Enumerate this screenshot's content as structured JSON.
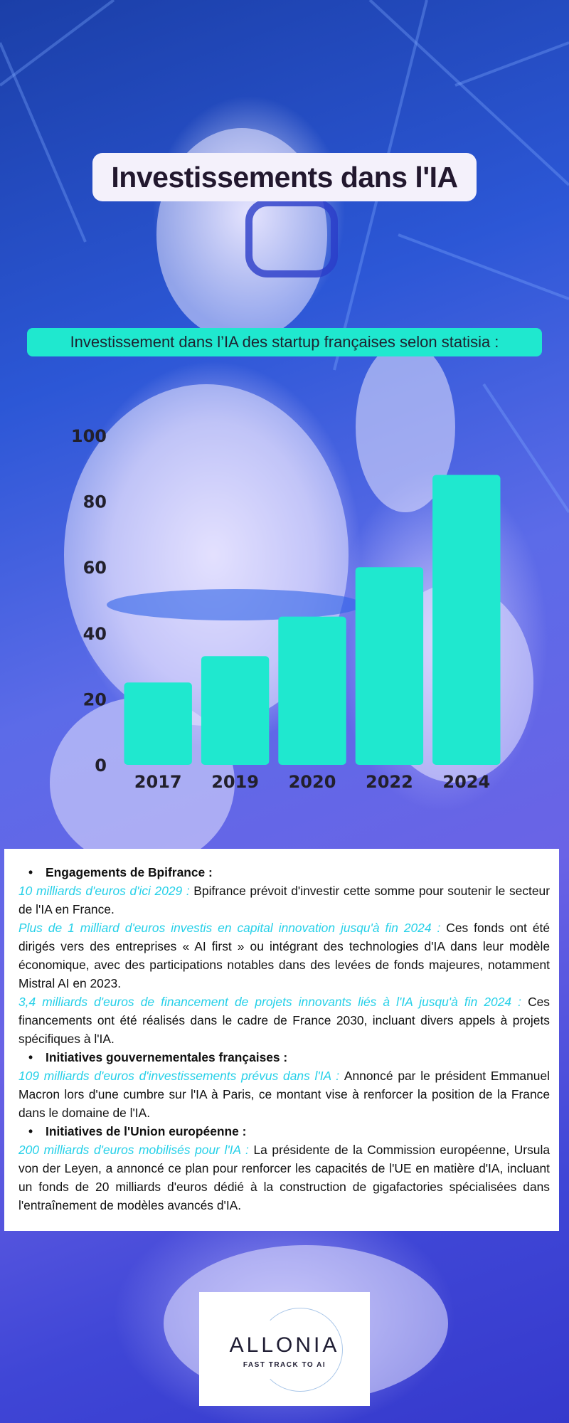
{
  "colors": {
    "accent": "#1fe8cf",
    "highlight": "#25d0e8",
    "title_text": "#22182e"
  },
  "header": {
    "title": "Investissements dans l'IA"
  },
  "chart_data": {
    "type": "bar",
    "title": "Investissement dans l’IA des startup françaises selon statisia :",
    "categories": [
      "2017",
      "2019",
      "2020",
      "2022",
      "2024"
    ],
    "values": [
      25,
      33,
      45,
      60,
      88
    ],
    "ylim": [
      0,
      100
    ],
    "yticks": [
      0,
      20,
      40,
      60,
      80,
      100
    ],
    "bar_color": "#1fe8cf",
    "grid": false
  },
  "sections": {
    "s1": {
      "heading": "Engagements de Bpifrance :",
      "items": [
        {
          "highlight": "10 milliards d'euros d'ici 2029 : ",
          "text": "Bpifrance prévoit d'investir cette somme pour soutenir le secteur de l'IA en France."
        },
        {
          "highlight": "Plus de 1 milliard d'euros investis en capital innovation jusqu'à fin 2024 : ",
          "text": "Ces fonds ont été dirigés vers des entreprises « AI first » ou intégrant des technologies d'IA dans leur modèle économique, avec des participations notables dans des levées de fonds majeures, notamment Mistral AI en 2023."
        },
        {
          "highlight": "3,4 milliards d'euros de financement de projets innovants liés à l'IA jusqu'à fin 2024 : ",
          "text": "Ces financements ont été réalisés dans le cadre de France 2030, incluant divers appels à projets spécifiques à l'IA."
        }
      ]
    },
    "s2": {
      "heading": "Initiatives gouvernementales françaises :",
      "items": [
        {
          "highlight": "109 milliards d'euros d'investissements prévus dans l'IA : ",
          "text": "Annoncé par le président Emmanuel Macron lors d'une cumbre sur l'IA à Paris, ce montant vise à renforcer la position de la France dans le domaine de l'IA."
        }
      ]
    },
    "s3": {
      "heading": "Initiatives de l'Union européenne :",
      "items": [
        {
          "highlight": "200 milliards d'euros mobilisés pour l'IA : ",
          "text": "La présidente de la Commission européenne, Ursula von der Leyen, a annoncé ce plan pour renforcer les capacités de l'UE en matière d'IA, incluant un fonds de 20 milliards d'euros dédié à la construction de gigafactories spécialisées dans l'entraînement de modèles avancés d'IA."
        }
      ]
    }
  },
  "logo": {
    "name": "ALLONIA",
    "tagline": "FAST TRACK TO AI"
  }
}
